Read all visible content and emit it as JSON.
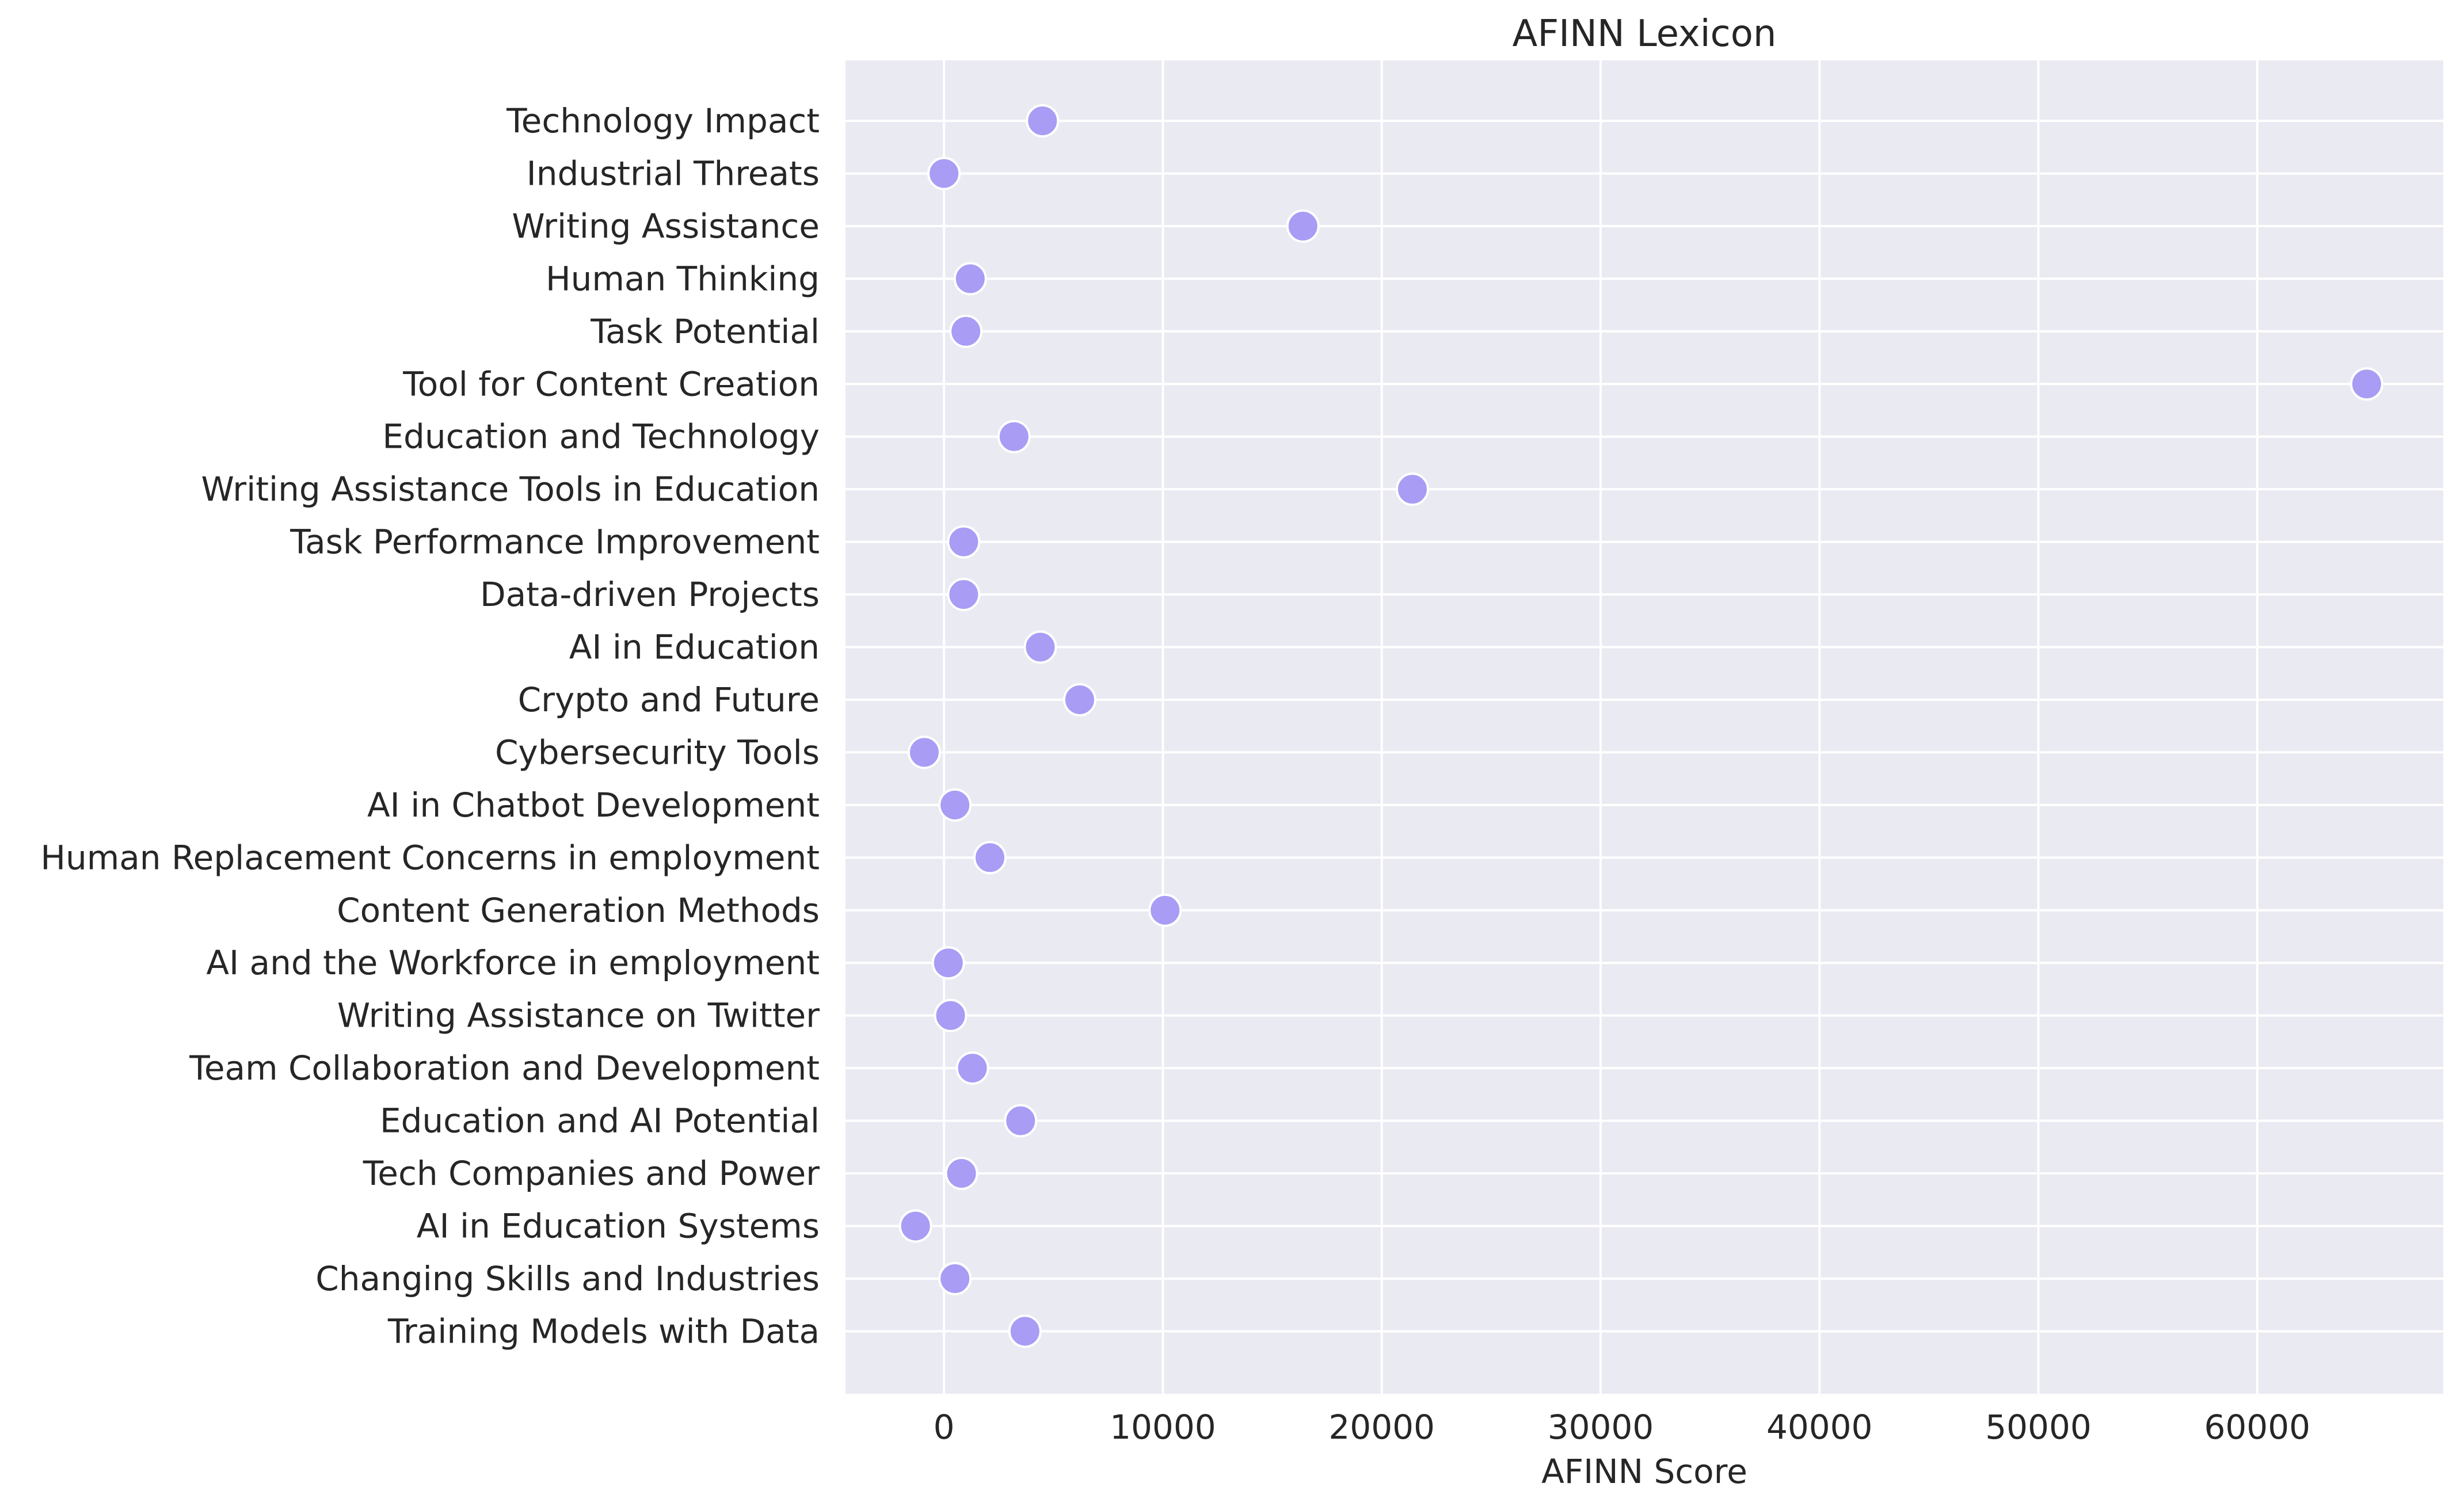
{
  "chart_data": {
    "type": "scatter",
    "title": "AFINN Lexicon",
    "xlabel": "AFINN Score",
    "ylabel": "",
    "xlim": [
      -4500,
      68500
    ],
    "xticks": [
      0,
      10000,
      20000,
      30000,
      40000,
      50000,
      60000
    ],
    "xtick_labels": [
      "0",
      "10000",
      "20000",
      "30000",
      "40000",
      "50000",
      "60000"
    ],
    "grid": true,
    "categories": [
      "Technology Impact",
      "Industrial Threats",
      "Writing Assistance",
      "Human Thinking",
      "Task Potential",
      "Tool for Content Creation",
      "Education and Technology",
      "Writing Assistance Tools in Education",
      "Task Performance Improvement",
      "Data-driven Projects",
      "AI in Education",
      "Crypto and Future",
      "Cybersecurity Tools",
      "AI in Chatbot Development",
      "Human Replacement Concerns in employment",
      "Content Generation Methods",
      "AI and the Workforce in employment",
      "Writing Assistance on Twitter",
      "Team Collaboration and Development",
      "Education and AI Potential",
      "Tech Companies and Power",
      "AI in Education Systems",
      "Changing Skills and Industries",
      "Training Models with Data"
    ],
    "values": [
      4500,
      0,
      16400,
      1200,
      1000,
      65000,
      3200,
      21400,
      900,
      900,
      4400,
      6200,
      -900,
      500,
      2100,
      10100,
      200,
      300,
      1300,
      3500,
      800,
      -1300,
      500,
      3700
    ],
    "colors": {
      "background": "#eaeaf2",
      "grid": "#ffffff",
      "marker": "#a99cf5",
      "marker_edge": "#ffffff",
      "text": "#262626"
    }
  }
}
